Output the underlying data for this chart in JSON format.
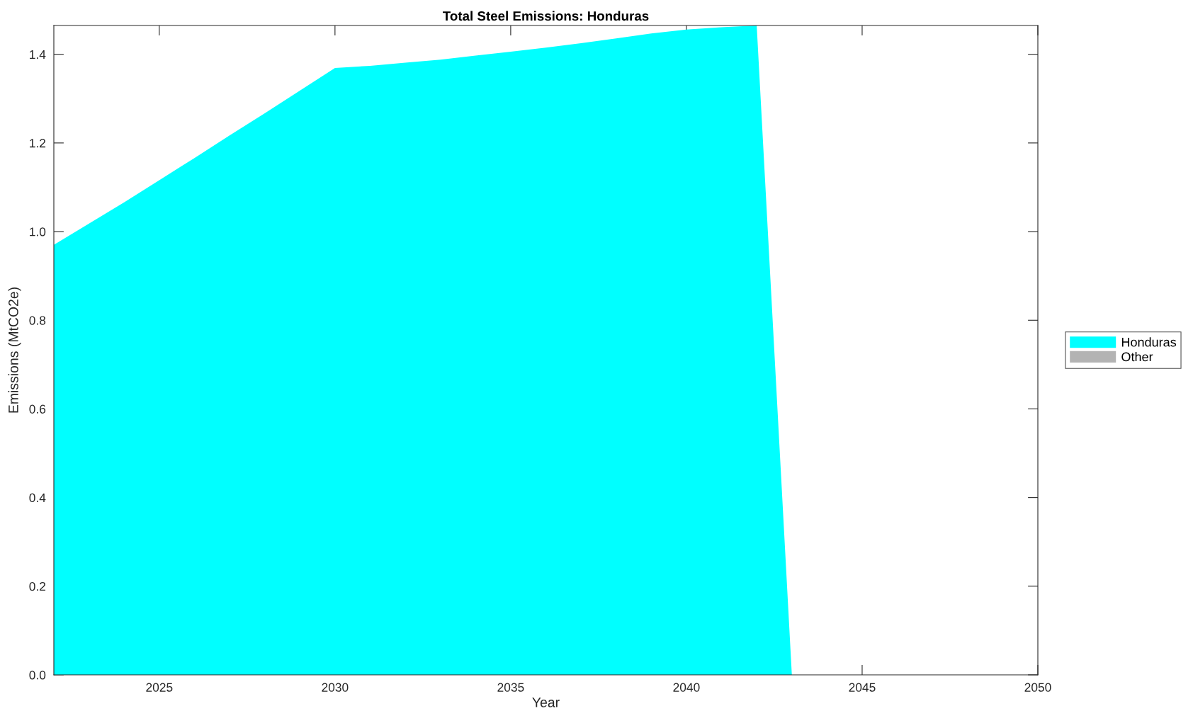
{
  "chart_data": {
    "type": "area",
    "title": "Total Steel Emissions: Honduras",
    "xlabel": "Year",
    "ylabel": "Emissions (MtCO2e)",
    "x": [
      2022,
      2023,
      2024,
      2025,
      2026,
      2027,
      2028,
      2029,
      2030,
      2031,
      2032,
      2033,
      2034,
      2035,
      2036,
      2037,
      2038,
      2039,
      2040,
      2041,
      2042,
      2043,
      2044,
      2045,
      2046,
      2047,
      2048,
      2049,
      2050
    ],
    "series": [
      {
        "name": "Honduras",
        "color": "#00ffff",
        "values": [
          0.97,
          1.018,
          1.066,
          1.116,
          1.166,
          1.217,
          1.267,
          1.318,
          1.369,
          1.374,
          1.381,
          1.388,
          1.397,
          1.406,
          1.415,
          1.425,
          1.436,
          1.447,
          1.456,
          1.461,
          1.465,
          0,
          0,
          0,
          0,
          0,
          0,
          0,
          0
        ]
      },
      {
        "name": "Other",
        "color": "#b3b3b3",
        "values": [
          null,
          null,
          null,
          null,
          null,
          null,
          null,
          null,
          null,
          null,
          null,
          null,
          null,
          null,
          null,
          null,
          null,
          null,
          null,
          null,
          null,
          null,
          null,
          null,
          null,
          null,
          null,
          null,
          null
        ]
      }
    ],
    "xlim": [
      2022,
      2050
    ],
    "xticks": [
      2025,
      2030,
      2035,
      2040,
      2045,
      2050
    ],
    "ylim": [
      0,
      1.465
    ],
    "yticks": [
      {
        "value": 0,
        "label": "0.0"
      },
      {
        "value": 0.2,
        "label": "0.2"
      },
      {
        "value": 0.4,
        "label": "0.4"
      },
      {
        "value": 0.6,
        "label": "0.6"
      },
      {
        "value": 0.8,
        "label": "0.8"
      },
      {
        "value": 1.0,
        "label": "1.0"
      },
      {
        "value": 1.2,
        "label": "1.2"
      },
      {
        "value": 1.4,
        "label": "1.4"
      }
    ],
    "legend": "right"
  }
}
